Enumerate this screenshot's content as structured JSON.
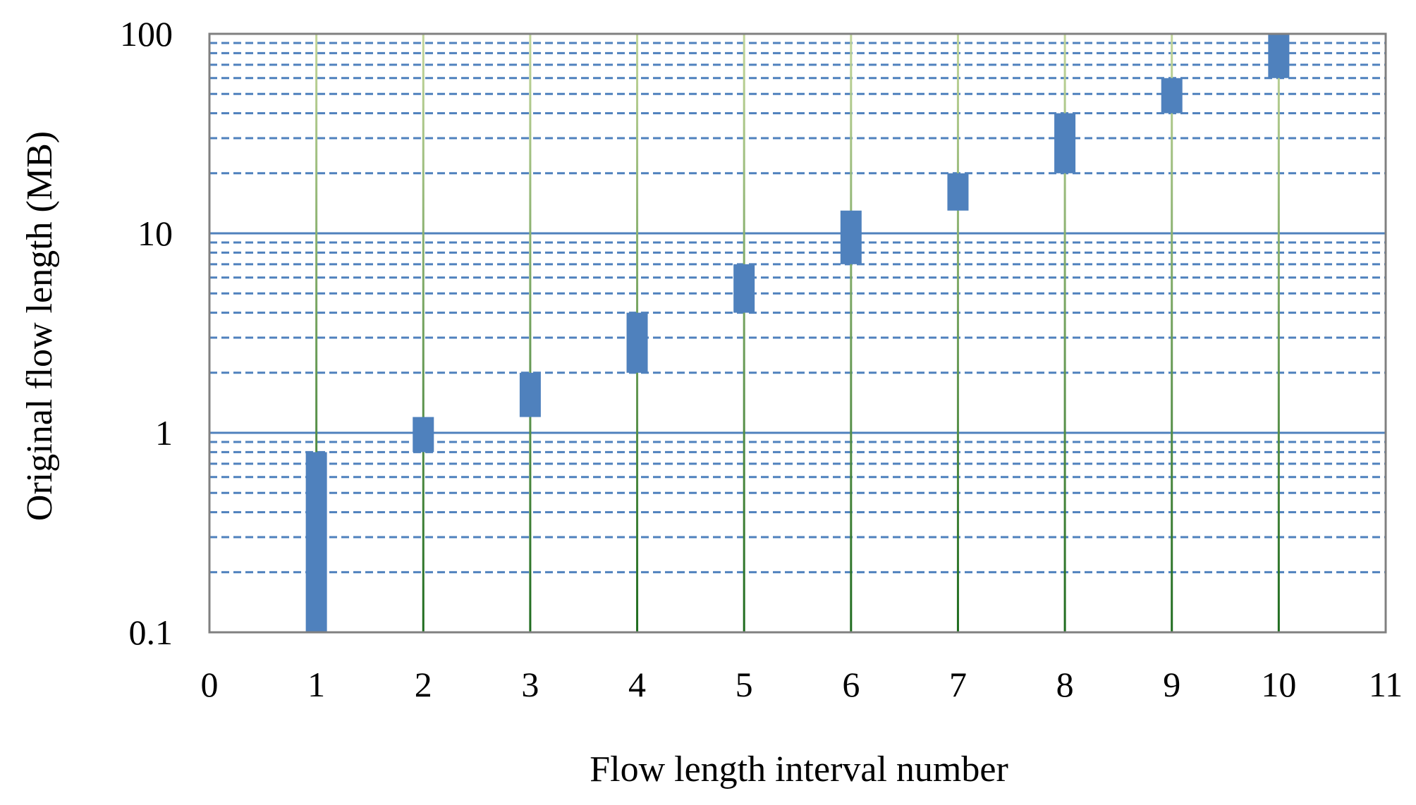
{
  "chart_data": {
    "type": "bar",
    "subtype": "floating-range",
    "xlabel": "Flow length interval number",
    "ylabel": "Original flow length (MB)",
    "xlim": [
      0,
      11
    ],
    "ylim": [
      0.1,
      100
    ],
    "yscale": "log",
    "x_ticks": [
      "0",
      "1",
      "2",
      "3",
      "4",
      "5",
      "6",
      "7",
      "8",
      "9",
      "10",
      "11"
    ],
    "y_ticks": [
      {
        "value": 0.1,
        "label": "0.1"
      },
      {
        "value": 1,
        "label": "1"
      },
      {
        "value": 10,
        "label": "10"
      },
      {
        "value": 100,
        "label": "100"
      }
    ],
    "grid": {
      "major": "solid",
      "minor": "dashed",
      "vertical": "green-gradient"
    },
    "legend": "none",
    "colors": {
      "bar": "#4f81bd",
      "major_grid": "#4f81bd",
      "minor_grid": "#4f81bd",
      "vertical_top": "#c3d69b",
      "vertical_bottom": "#1e6b1e",
      "frame": "#808080"
    },
    "series": [
      {
        "values": [
          {
            "x": 1,
            "low": 0.1,
            "high": 0.8
          },
          {
            "x": 2,
            "low": 0.8,
            "high": 1.2
          },
          {
            "x": 3,
            "low": 1.2,
            "high": 2
          },
          {
            "x": 4,
            "low": 2,
            "high": 4
          },
          {
            "x": 5,
            "low": 4,
            "high": 7
          },
          {
            "x": 6,
            "low": 7,
            "high": 13
          },
          {
            "x": 7,
            "low": 13,
            "high": 20
          },
          {
            "x": 8,
            "low": 20,
            "high": 40
          },
          {
            "x": 9,
            "low": 40,
            "high": 60
          },
          {
            "x": 10,
            "low": 60,
            "high": 100
          }
        ]
      }
    ]
  }
}
